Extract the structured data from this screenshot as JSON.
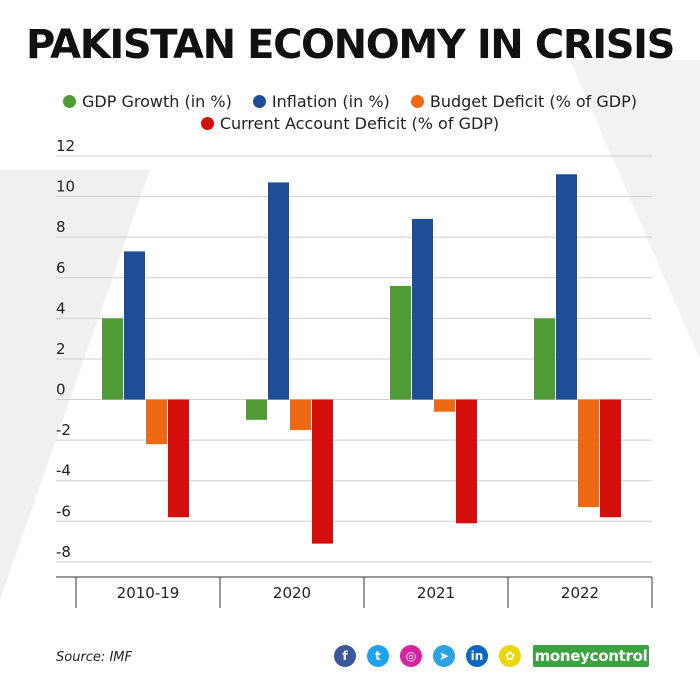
{
  "title": "PAKISTAN ECONOMY IN CRISIS",
  "legend": [
    {
      "label": "GDP Growth (in %)",
      "color": "#4f9b36"
    },
    {
      "label": "Inflation (in %)",
      "color": "#1d4e97"
    },
    {
      "label": "Budget Deficit (% of GDP)",
      "color": "#ee6a12"
    },
    {
      "label": "Current Account Deficit (% of GDP)",
      "color": "#d40d0d"
    }
  ],
  "chart_data": {
    "type": "bar",
    "categories": [
      "2010-19",
      "2020",
      "2021",
      "2022"
    ],
    "series": [
      {
        "name": "GDP Growth (in %)",
        "color": "#4f9b36",
        "values": [
          4.0,
          -1.0,
          5.6,
          4.0
        ]
      },
      {
        "name": "Inflation (in %)",
        "color": "#1d4e97",
        "values": [
          7.3,
          10.7,
          8.9,
          11.1
        ]
      },
      {
        "name": "Budget Deficit (% of GDP)",
        "color": "#ee6a12",
        "values": [
          -2.2,
          -1.5,
          -0.6,
          -5.3
        ]
      },
      {
        "name": "Current Account Deficit (% of GDP)",
        "color": "#d40d0d",
        "values": [
          -5.8,
          -7.1,
          -6.1,
          -5.8
        ]
      }
    ],
    "yticks": [
      12,
      10,
      8,
      6,
      4,
      2,
      0,
      -2,
      -4,
      -6,
      -8
    ],
    "ylim": [
      -8.4,
      12
    ],
    "grid": true,
    "legend_position": "top-center"
  },
  "source": "Source: IMF",
  "brand": {
    "part1": "money",
    "part2": "control"
  },
  "social": [
    {
      "name": "facebook",
      "glyph": "f",
      "color": "#3b5998"
    },
    {
      "name": "twitter",
      "glyph": "t",
      "color": "#1da1f2"
    },
    {
      "name": "instagram",
      "glyph": "◎",
      "color": "#d6249f"
    },
    {
      "name": "telegram",
      "glyph": "➤",
      "color": "#2aa3df"
    },
    {
      "name": "linkedin",
      "glyph": "in",
      "color": "#0a66c2"
    },
    {
      "name": "snapchat",
      "glyph": "✿",
      "color": "#e9d800"
    }
  ]
}
